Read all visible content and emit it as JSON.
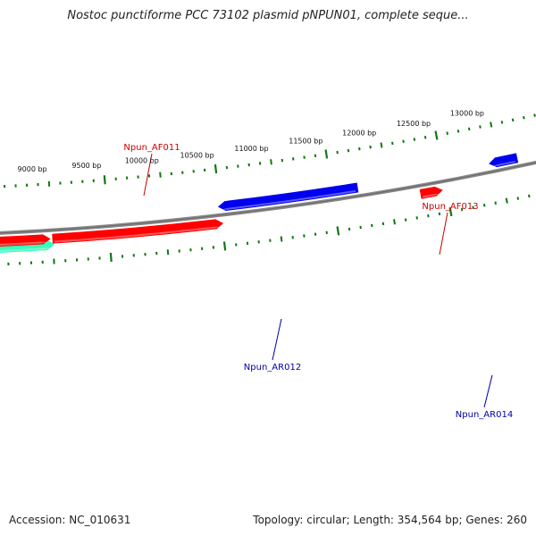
{
  "title": "Nostoc punctiforme PCC 73102 plasmid pNPUN01, complete seque...",
  "footer": {
    "accession": "Accession: NC_010631",
    "summary": "Topology: circular; Length: 354,564 bp; Genes: 260"
  },
  "colors": {
    "forward": "#ff0000",
    "reverse": "#0000ee",
    "other": "#33ffbb",
    "backbone": "#888888",
    "ticks": "#117711",
    "forward_label": "#cc0000",
    "reverse_label": "#0000aa"
  },
  "scale": {
    "unit": "bp",
    "labels": [
      "9000 bp",
      "9500 bp",
      "10000 bp",
      "10500 bp",
      "11000 bp",
      "11500 bp",
      "12000 bp",
      "12500 bp",
      "13000 bp"
    ]
  },
  "genes": [
    {
      "label": "",
      "strand": "+",
      "kind": "other"
    },
    {
      "label": "",
      "strand": "+",
      "kind": "forward"
    },
    {
      "label": "Npun_AF011",
      "strand": "+",
      "kind": "forward"
    },
    {
      "label": "Npun_AF013",
      "strand": "+",
      "kind": "forward"
    },
    {
      "label": "Npun_AR012",
      "strand": "-",
      "kind": "reverse"
    },
    {
      "label": "Npun_AR014",
      "strand": "-",
      "kind": "reverse"
    }
  ]
}
